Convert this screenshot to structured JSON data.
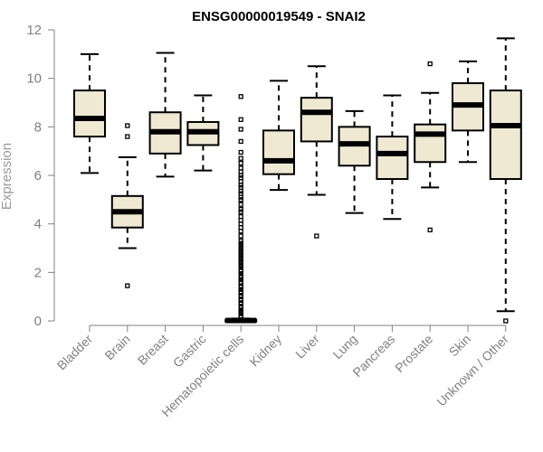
{
  "chart_data": {
    "type": "boxplot",
    "title": "ENSG00000019549 - SNAI2",
    "ylabel": "Expression",
    "xlabel": "",
    "ylim": [
      0,
      12
    ],
    "yticks": [
      0,
      2,
      4,
      6,
      8,
      10,
      12
    ],
    "box_color": "#efe9d2",
    "categories": [
      "Bladder",
      "Brain",
      "Breast",
      "Gastric",
      "Hematopoietic cells",
      "Kidney",
      "Liver",
      "Lung",
      "Pancreas",
      "Prostate",
      "Skin",
      "Unknown / Other"
    ],
    "boxes": [
      {
        "whisker_low": 6.1,
        "q1": 7.6,
        "median": 8.35,
        "q3": 9.5,
        "whisker_high": 11.0,
        "outliers": []
      },
      {
        "whisker_low": 3.0,
        "q1": 3.85,
        "median": 4.5,
        "q3": 5.15,
        "whisker_high": 6.75,
        "outliers": [
          1.45,
          7.6,
          8.05
        ]
      },
      {
        "whisker_low": 5.95,
        "q1": 6.9,
        "median": 7.8,
        "q3": 8.6,
        "whisker_high": 11.05,
        "outliers": []
      },
      {
        "whisker_low": 6.2,
        "q1": 7.25,
        "median": 7.8,
        "q3": 8.2,
        "whisker_high": 9.3,
        "outliers": []
      },
      {
        "whisker_low": 0.0,
        "q1": 0.0,
        "median": 0.02,
        "q3": 0.05,
        "whisker_high": 0.1,
        "outliers": [
          0.15,
          0.2,
          0.3,
          0.35,
          0.4,
          0.45,
          0.55,
          0.6,
          0.7,
          0.75,
          0.85,
          0.9,
          1.0,
          1.05,
          1.15,
          1.2,
          1.3,
          1.4,
          1.45,
          1.55,
          1.6,
          1.7,
          1.8,
          1.85,
          1.95,
          2.05,
          2.1,
          2.2,
          2.3,
          2.4,
          2.5,
          2.6,
          2.7,
          2.8,
          2.9,
          3.0,
          3.1,
          3.2,
          3.3,
          3.5,
          3.7,
          3.85,
          4.0,
          4.15,
          4.3,
          4.5,
          4.6,
          4.8,
          5.0,
          5.1,
          5.25,
          5.35,
          5.5,
          5.6,
          5.75,
          5.9,
          6.0,
          6.15,
          6.3,
          6.5,
          6.7,
          6.95,
          7.4,
          7.9,
          8.3,
          9.25
        ]
      },
      {
        "whisker_low": 5.4,
        "q1": 6.05,
        "median": 6.6,
        "q3": 7.85,
        "whisker_high": 9.9,
        "outliers": []
      },
      {
        "whisker_low": 5.2,
        "q1": 7.4,
        "median": 8.6,
        "q3": 9.2,
        "whisker_high": 10.5,
        "outliers": [
          3.5
        ]
      },
      {
        "whisker_low": 4.45,
        "q1": 6.4,
        "median": 7.3,
        "q3": 8.0,
        "whisker_high": 8.65,
        "outliers": []
      },
      {
        "whisker_low": 4.2,
        "q1": 5.85,
        "median": 6.9,
        "q3": 7.6,
        "whisker_high": 9.3,
        "outliers": []
      },
      {
        "whisker_low": 5.5,
        "q1": 6.55,
        "median": 7.7,
        "q3": 8.1,
        "whisker_high": 9.4,
        "outliers": [
          3.75,
          10.6
        ]
      },
      {
        "whisker_low": 6.55,
        "q1": 7.85,
        "median": 8.9,
        "q3": 9.8,
        "whisker_high": 10.7,
        "outliers": []
      },
      {
        "whisker_low": 0.4,
        "q1": 5.85,
        "median": 8.05,
        "q3": 9.5,
        "whisker_high": 11.65,
        "outliers": [
          0.0
        ]
      }
    ]
  }
}
